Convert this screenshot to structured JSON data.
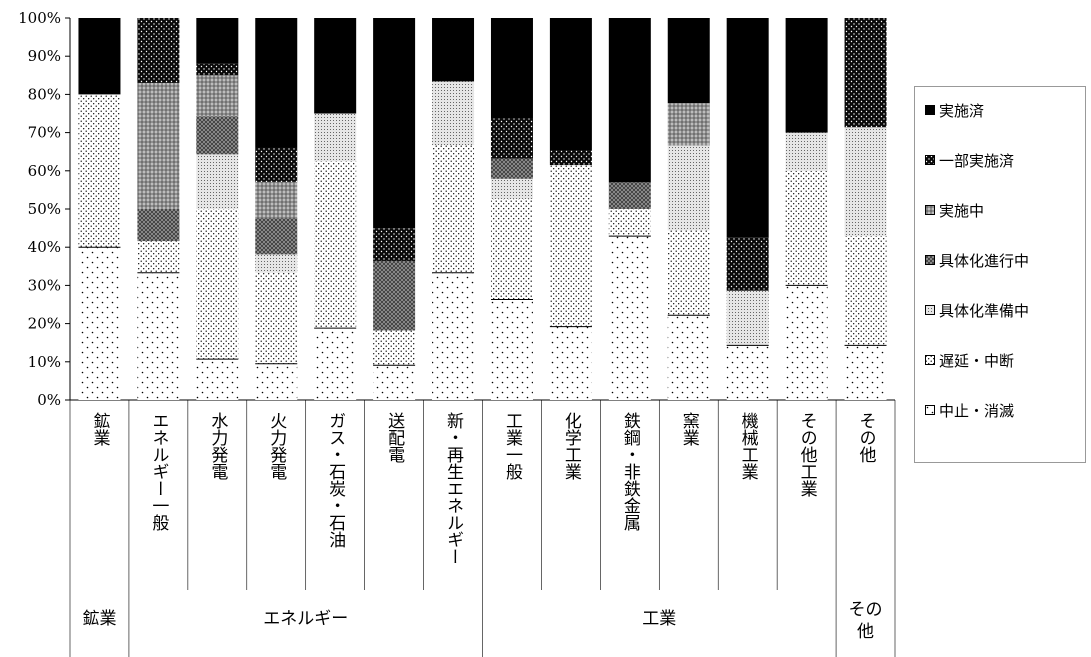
{
  "chart_data": {
    "type": "bar",
    "stacked": true,
    "percent": true,
    "ylim": [
      0,
      100
    ],
    "yticks": [
      "0%",
      "10%",
      "20%",
      "30%",
      "40%",
      "50%",
      "60%",
      "70%",
      "80%",
      "90%",
      "100%"
    ],
    "grid": false,
    "legend_position": "right",
    "categories": [
      "鉱業",
      "エネルギー一般",
      "水力発電",
      "火力発電",
      "ガス・石炭・石油",
      "送配電",
      "新・再生エネルギー",
      "工業一般",
      "化学工業",
      "鉄鋼・非鉄金属",
      "窯業",
      "機械工業",
      "その他工業",
      "その他"
    ],
    "groups": [
      {
        "label": "鉱業",
        "span": 1
      },
      {
        "label": "エネルギー",
        "span": 6
      },
      {
        "label": "工業",
        "span": 6
      },
      {
        "label": "その他",
        "span": 1
      }
    ],
    "series": [
      {
        "name": "中止・消滅",
        "pattern": "sparse-dots",
        "values": [
          40.0,
          33.3,
          10.7,
          9.5,
          18.8,
          9.1,
          33.3,
          26.3,
          19.2,
          42.9,
          22.2,
          14.3,
          30.0,
          14.3
        ]
      },
      {
        "name": "遅延・中断",
        "pattern": "fine-dots",
        "values": [
          40.0,
          8.3,
          39.3,
          23.8,
          43.7,
          9.1,
          33.4,
          26.3,
          42.3,
          7.1,
          22.2,
          0.0,
          30.0,
          28.6
        ]
      },
      {
        "name": "具体化準備中",
        "pattern": "light-grid",
        "values": [
          0.0,
          0.0,
          14.3,
          4.8,
          12.5,
          0.0,
          16.7,
          5.3,
          0.0,
          0.0,
          22.2,
          14.3,
          10.0,
          28.5
        ]
      },
      {
        "name": "具体化進行中",
        "pattern": "dark-cross",
        "values": [
          0.0,
          8.4,
          10.0,
          9.5,
          0.0,
          18.2,
          0.0,
          5.3,
          0.0,
          7.0,
          0.0,
          0.0,
          0.0,
          0.0
        ]
      },
      {
        "name": "実施中",
        "pattern": "dense-cross",
        "values": [
          0.0,
          33.0,
          10.7,
          9.5,
          0.0,
          0.0,
          0.0,
          0.0,
          0.0,
          0.0,
          11.1,
          0.0,
          0.0,
          0.0
        ]
      },
      {
        "name": "一部実施済",
        "pattern": "dots-on-black",
        "values": [
          0.0,
          17.0,
          3.0,
          9.0,
          0.0,
          8.6,
          0.0,
          10.5,
          3.8,
          0.0,
          0.0,
          14.0,
          0.0,
          28.6
        ]
      },
      {
        "name": "実施済",
        "pattern": "solid-black",
        "values": [
          20.0,
          0.0,
          12.0,
          33.9,
          25.0,
          55.0,
          16.6,
          26.3,
          34.7,
          43.0,
          22.3,
          57.4,
          30.0,
          0.0
        ]
      }
    ]
  }
}
